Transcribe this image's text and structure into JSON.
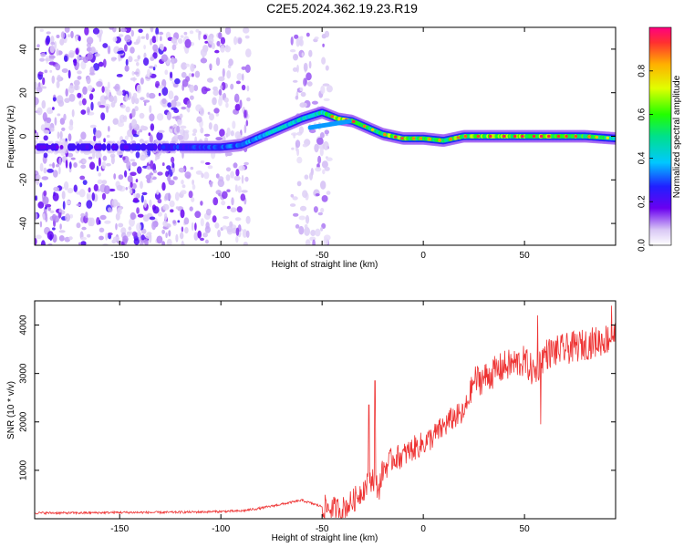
{
  "title": "C2E5.2024.362.19.23.R19",
  "chart_data": [
    {
      "type": "heatmap",
      "xlabel": "Height of straight line (km)",
      "ylabel": "Frequency (Hz)",
      "xlim": [
        -192,
        95
      ],
      "ylim": [
        -50,
        50
      ],
      "xticks": [
        -150,
        -100,
        -50,
        0,
        50
      ],
      "yticks": [
        -40,
        -20,
        0,
        20,
        40
      ],
      "grid": false,
      "colorbar": {
        "label": "Normalized spectral amplitude",
        "range": [
          0,
          1
        ],
        "ticks": [
          "0.0",
          "0.2",
          "0.4",
          "0.6",
          "0.8"
        ]
      },
      "ridge": {
        "x": [
          -192,
          -150,
          -120,
          -100,
          -90,
          -80,
          -70,
          -60,
          -50,
          -42,
          -35,
          -30,
          -25,
          -20,
          -15,
          -10,
          0,
          10,
          20,
          40,
          60,
          80,
          95
        ],
        "y": [
          -5,
          -5,
          -5,
          -5,
          -4,
          0,
          4,
          8,
          11,
          8,
          7,
          5,
          3,
          1,
          0,
          -1,
          -1,
          -2,
          0,
          0,
          0,
          0,
          -1
        ],
        "amplitude": [
          0.25,
          0.3,
          0.35,
          0.4,
          0.45,
          0.5,
          0.55,
          0.55,
          0.6,
          0.9,
          0.85,
          0.8,
          0.7,
          0.75,
          0.85,
          0.8,
          0.75,
          0.75,
          0.8,
          0.85,
          0.85,
          0.8,
          0.6
        ]
      }
    },
    {
      "type": "line",
      "xlabel": "Height of straight line (km)",
      "ylabel": "SNR (10 * v/v)",
      "xlim": [
        -192,
        95
      ],
      "ylim": [
        0,
        4500
      ],
      "xticks": [
        -150,
        -100,
        -50,
        0,
        50
      ],
      "yticks": [
        1000,
        2000,
        3000,
        4000
      ],
      "grid": false,
      "color": "#ee3333",
      "x": [
        -192,
        -170,
        -150,
        -130,
        -110,
        -90,
        -80,
        -70,
        -60,
        -50,
        -45,
        -40,
        -35,
        -30,
        -25,
        -22,
        -20,
        -15,
        -10,
        -5,
        0,
        5,
        10,
        15,
        20,
        25,
        30,
        40,
        50,
        55,
        60,
        70,
        80,
        90,
        95
      ],
      "y": [
        120,
        120,
        130,
        130,
        140,
        160,
        220,
        300,
        380,
        250,
        200,
        200,
        350,
        600,
        850,
        600,
        1000,
        1250,
        1300,
        1450,
        1550,
        1700,
        1900,
        2100,
        2150,
        2850,
        2900,
        3150,
        3250,
        3000,
        3400,
        3500,
        3600,
        3700,
        3800
      ]
    }
  ]
}
